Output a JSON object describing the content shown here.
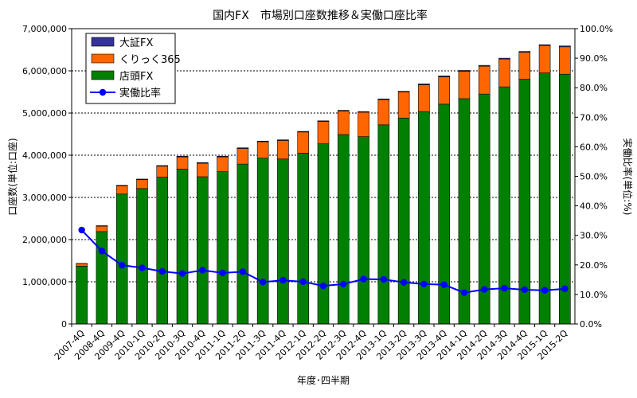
{
  "chart_data": {
    "type": "bar",
    "stacked": true,
    "title": "国内FX　市場別口座数推移＆実働口座比率",
    "xlabel": "年度･四半期",
    "ylabel": "口座数(単位:口座)",
    "y2label": "実働比率(単位:%)",
    "ylim": [
      0,
      7000000
    ],
    "y2lim": [
      0,
      100
    ],
    "yticks": [
      "0",
      "1,000,000",
      "2,000,000",
      "3,000,000",
      "4,000,000",
      "5,000,000",
      "6,000,000",
      "7,000,000"
    ],
    "y2ticks": [
      "0.0%",
      "10.0%",
      "20.0%",
      "30.0%",
      "40.0%",
      "50.0%",
      "60.0%",
      "70.0%",
      "80.0%",
      "90.0%",
      "100.0%"
    ],
    "grid": true,
    "legend_position": "top-left",
    "categories": [
      "2007-4Q",
      "2008-4Q",
      "2009-4Q",
      "2010-1Q",
      "2010-2Q",
      "2010-3Q",
      "2010-4Q",
      "2011-1Q",
      "2011-2Q",
      "2011-3Q",
      "2011-4Q",
      "2012-1Q",
      "2012-2Q",
      "2012-3Q",
      "2012-4Q",
      "2013-1Q",
      "2013-2Q",
      "2013-3Q",
      "2013-4Q",
      "2014-1Q",
      "2014-2Q",
      "2014-3Q",
      "2014-4Q",
      "2015-1Q",
      "2015-2Q"
    ],
    "series": [
      {
        "name": "大証FX",
        "kind": "bar",
        "color": "#333399",
        "values": [
          5000,
          10000,
          15000,
          15000,
          15000,
          15000,
          15000,
          15000,
          15000,
          15000,
          15000,
          15000,
          15000,
          15000,
          15000,
          15000,
          15000,
          20000,
          20000,
          20000,
          20000,
          20000,
          20000,
          20000,
          20000
        ]
      },
      {
        "name": "くりっく365",
        "kind": "bar",
        "color": "#ff6600",
        "values": [
          60000,
          130000,
          190000,
          210000,
          260000,
          290000,
          320000,
          350000,
          370000,
          390000,
          440000,
          500000,
          530000,
          560000,
          580000,
          600000,
          620000,
          640000,
          650000,
          650000,
          660000,
          660000,
          640000,
          650000,
          650000
        ]
      },
      {
        "name": "店頭FX",
        "kind": "bar",
        "color": "#008000",
        "values": [
          1370000,
          2190000,
          3080000,
          3210000,
          3480000,
          3670000,
          3490000,
          3610000,
          3790000,
          3930000,
          3910000,
          4050000,
          4270000,
          4490000,
          4440000,
          4720000,
          4880000,
          5030000,
          5210000,
          5340000,
          5450000,
          5620000,
          5800000,
          5950000,
          5920000
        ]
      },
      {
        "name": "実働比率",
        "kind": "line",
        "axis": "right",
        "color": "#0000ff",
        "values": [
          31.8,
          24.7,
          19.9,
          19.0,
          17.8,
          17.1,
          18.2,
          17.3,
          17.7,
          14.2,
          14.8,
          14.3,
          12.9,
          13.5,
          15.2,
          15.1,
          14.1,
          13.5,
          13.3,
          10.6,
          11.7,
          12.1,
          11.6,
          11.4,
          11.9
        ]
      }
    ]
  }
}
